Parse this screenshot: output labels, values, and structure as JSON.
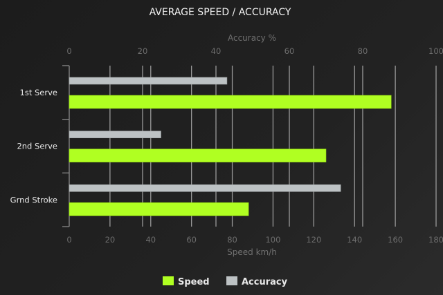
{
  "chart_data": {
    "type": "bar",
    "orientation": "horizontal",
    "title": "AVERAGE SPEED / ACCURACY",
    "categories": [
      "1st Serve",
      "2nd Serve",
      "Grnd Stroke"
    ],
    "series": [
      {
        "name": "Speed",
        "axis": "bottom",
        "values": [
          158,
          126,
          88
        ],
        "color": "#b0ff22"
      },
      {
        "name": "Accuracy",
        "axis": "top",
        "values": [
          43,
          25,
          74
        ],
        "color": "#bdc2c4"
      }
    ],
    "xlabel_bottom": "Speed km/h",
    "xlim_bottom": [
      0,
      180
    ],
    "xticks_bottom": [
      "0",
      "20",
      "40",
      "60",
      "80",
      "100",
      "120",
      "140",
      "160",
      "180"
    ],
    "xlabel_top": "Accuracy %",
    "xlim_top": [
      0,
      100
    ],
    "xticks_top": [
      "0",
      "20",
      "40",
      "60",
      "80",
      "100"
    ],
    "grid": true,
    "legend": "bottom-center"
  }
}
